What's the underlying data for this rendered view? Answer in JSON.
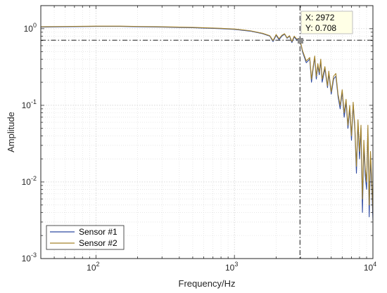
{
  "chart_data": {
    "type": "line",
    "xlabel": "Frequency/Hz",
    "ylabel": "Amplitude",
    "xscale": "log",
    "yscale": "log",
    "xlim": [
      40,
      10000
    ],
    "ylim": [
      0.001,
      2
    ],
    "grid": "on (major and minor, dotted)",
    "legend_placement": "bottom-left",
    "x_tick_labels": [
      {
        "value": 100,
        "base": "10",
        "exp": "2"
      },
      {
        "value": 1000,
        "base": "10",
        "exp": "3"
      },
      {
        "value": 10000,
        "base": "10",
        "exp": "4"
      }
    ],
    "y_tick_labels": [
      {
        "value": 1,
        "base": "10",
        "exp": "0"
      },
      {
        "value": 0.1,
        "base": "10",
        "exp": "-1"
      },
      {
        "value": 0.01,
        "base": "10",
        "exp": "-2"
      },
      {
        "value": 0.001,
        "base": "10",
        "exp": "-3"
      }
    ],
    "series": [
      {
        "name": "Sensor #1",
        "color": "#2f4aa0",
        "x": [
          40,
          60,
          100,
          150,
          200,
          300,
          500,
          800,
          1000,
          1300,
          1600,
          1800,
          1900,
          2000,
          2100,
          2200,
          2300,
          2400,
          2500,
          2600,
          2700,
          2800,
          2972,
          3100,
          3300,
          3500,
          3600,
          3700,
          3800,
          3900,
          4000,
          4100,
          4200,
          4300,
          4500,
          4700,
          4800,
          5000,
          5200,
          5400,
          5600,
          5800,
          6000,
          6200,
          6400,
          6600,
          6800,
          7000,
          7200,
          7400,
          7600,
          7800,
          8000,
          8200,
          8400,
          8600,
          8800,
          9000,
          9200,
          9400,
          9600,
          9800,
          10000
        ],
        "y": [
          1.05,
          1.06,
          1.07,
          1.07,
          1.06,
          1.05,
          1.03,
          1.0,
          0.98,
          0.93,
          0.86,
          0.8,
          0.68,
          0.82,
          0.72,
          0.8,
          0.85,
          0.75,
          0.8,
          0.66,
          0.78,
          0.72,
          0.708,
          0.5,
          0.36,
          0.4,
          0.2,
          0.3,
          0.42,
          0.22,
          0.33,
          0.25,
          0.38,
          0.2,
          0.3,
          0.17,
          0.26,
          0.14,
          0.22,
          0.24,
          0.13,
          0.09,
          0.15,
          0.07,
          0.11,
          0.05,
          0.09,
          0.035,
          0.1,
          0.05,
          0.013,
          0.06,
          0.02,
          0.05,
          0.004,
          0.03,
          0.012,
          0.008,
          0.05,
          0.0035,
          0.02,
          0.009,
          0.0032
        ]
      },
      {
        "name": "Sensor #2",
        "color": "#a5832a",
        "x": [
          40,
          60,
          100,
          150,
          200,
          300,
          500,
          800,
          1000,
          1300,
          1600,
          1800,
          1900,
          2000,
          2100,
          2200,
          2300,
          2400,
          2500,
          2600,
          2700,
          2800,
          2972,
          3100,
          3300,
          3500,
          3600,
          3700,
          3800,
          3900,
          4000,
          4100,
          4200,
          4300,
          4500,
          4700,
          4800,
          5000,
          5200,
          5400,
          5600,
          5800,
          6000,
          6200,
          6400,
          6600,
          6800,
          7000,
          7200,
          7400,
          7600,
          7800,
          8000,
          8200,
          8400,
          8600,
          8800,
          9000,
          9200,
          9400,
          9600,
          9800,
          10000
        ],
        "y": [
          1.06,
          1.07,
          1.08,
          1.08,
          1.07,
          1.06,
          1.04,
          1.01,
          0.99,
          0.94,
          0.87,
          0.81,
          0.7,
          0.84,
          0.74,
          0.82,
          0.86,
          0.76,
          0.81,
          0.68,
          0.8,
          0.74,
          0.72,
          0.52,
          0.38,
          0.42,
          0.22,
          0.32,
          0.44,
          0.24,
          0.35,
          0.27,
          0.4,
          0.22,
          0.32,
          0.18,
          0.28,
          0.15,
          0.24,
          0.26,
          0.14,
          0.1,
          0.16,
          0.08,
          0.12,
          0.055,
          0.1,
          0.04,
          0.11,
          0.055,
          0.016,
          0.065,
          0.025,
          0.055,
          0.006,
          0.035,
          0.015,
          0.01,
          0.055,
          0.005,
          0.025,
          0.011,
          0.004
        ]
      }
    ],
    "crosshair": {
      "x": 2972,
      "y": 0.708
    },
    "datatip": {
      "line1": "X: 2972",
      "line2": "Y: 0.708"
    }
  }
}
